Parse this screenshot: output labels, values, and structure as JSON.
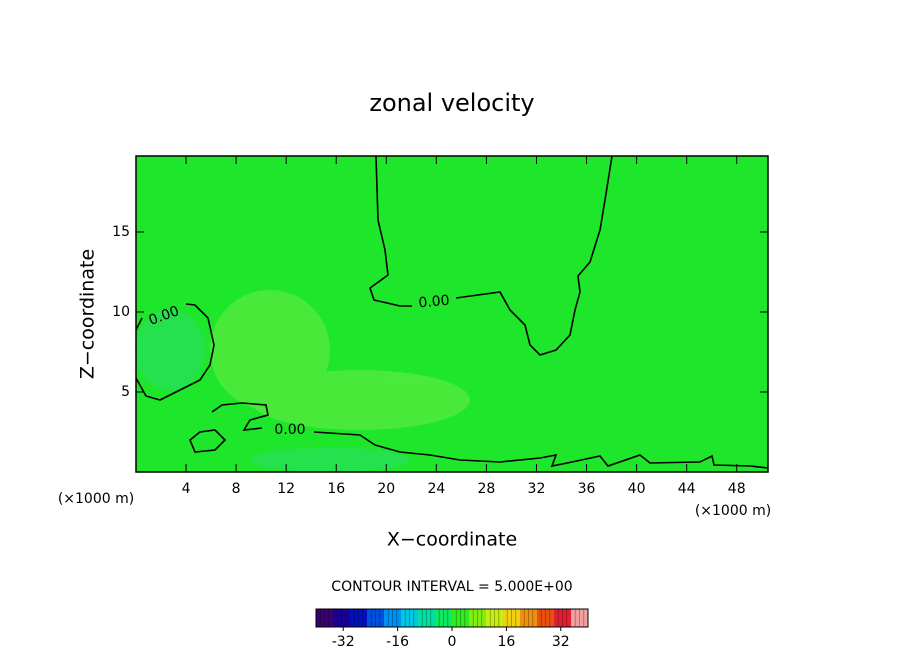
{
  "chart_data": {
    "type": "contour",
    "title": "zonal velocity",
    "x_label": "X−coordinate",
    "y_label": "Z−coordinate",
    "x_unit_label": "(×1000 m)",
    "y_unit_label": "(×1000 m)",
    "xlim": [
      0,
      50.5
    ],
    "xticks": [
      4,
      8,
      12,
      16,
      20,
      24,
      28,
      32,
      36,
      40,
      44,
      48
    ],
    "ylim": [
      0,
      19.75
    ],
    "yticks": [
      5,
      10,
      15
    ],
    "contour_labels": [
      "0.00",
      "0.00",
      "0.00"
    ],
    "field_color": "#1ee62a",
    "contour_interval": {
      "value": 5,
      "label": "CONTOUR INTERVAL = 5.000E+00"
    },
    "clim": [
      -40,
      40
    ],
    "cticks": [
      -32,
      -16,
      0,
      16,
      32
    ],
    "colors": [
      "#3a0070",
      "#1a0090",
      "#0010c0",
      "#0050e0",
      "#0090f0",
      "#00c8e0",
      "#00e0a0",
      "#10e860",
      "#30ec20",
      "#80ee10",
      "#c8ee10",
      "#f0d010",
      "#f09010",
      "#e85010",
      "#e02030",
      "#f0a0a0"
    ]
  }
}
